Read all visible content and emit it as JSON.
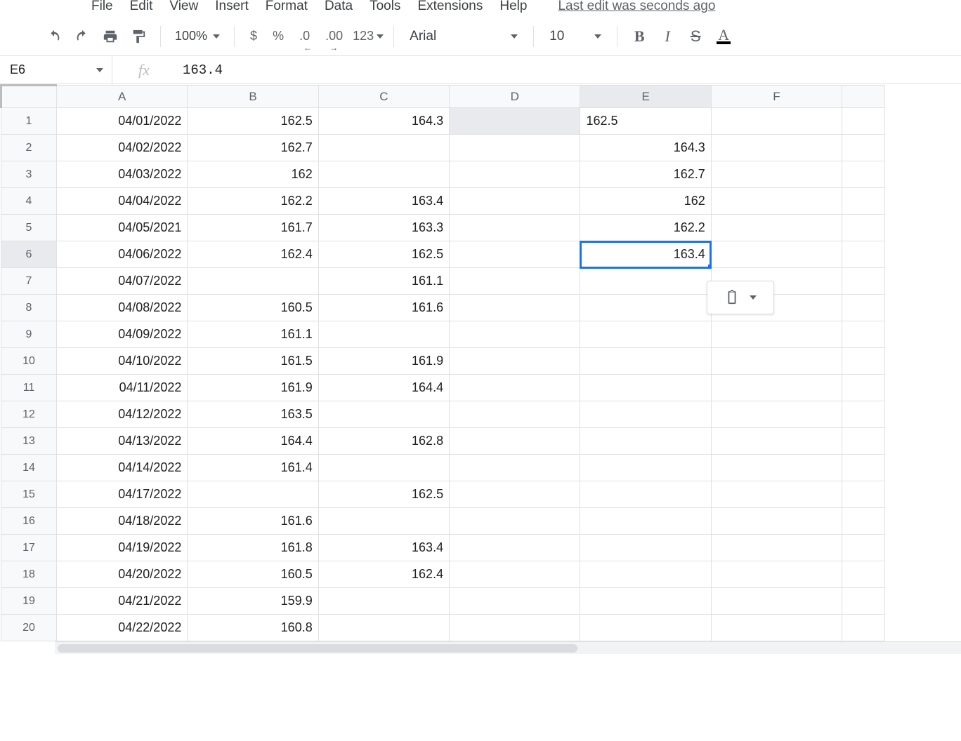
{
  "menus": [
    "File",
    "Edit",
    "View",
    "Insert",
    "Format",
    "Data",
    "Tools",
    "Extensions",
    "Help"
  ],
  "last_edit": "Last edit was seconds ago",
  "toolbar": {
    "zoom": "100%",
    "currency": "$",
    "percent": "%",
    "dec_dec": ".0",
    "inc_dec": ".00",
    "more_formats": "123",
    "font_family": "Arial",
    "font_size": "10",
    "bold": "B",
    "italic": "I",
    "strike": "S",
    "text_color": "A"
  },
  "name_box": "E6",
  "formula": "163.4",
  "columns": [
    "A",
    "B",
    "C",
    "D",
    "E",
    "F"
  ],
  "selected": {
    "col": "E",
    "row": 6
  },
  "rows": [
    {
      "n": 1,
      "A": "04/01/2022",
      "B": "162.5",
      "C": "164.3",
      "D": "",
      "E": "162.5",
      "E_align": "left",
      "F": ""
    },
    {
      "n": 2,
      "A": "04/02/2022",
      "B": "162.7",
      "C": "",
      "D": "",
      "E": "164.3",
      "F": ""
    },
    {
      "n": 3,
      "A": "04/03/2022",
      "B": "162",
      "C": "",
      "D": "",
      "E": "162.7",
      "F": ""
    },
    {
      "n": 4,
      "A": "04/04/2022",
      "B": "162.2",
      "C": "163.4",
      "D": "",
      "E": "162",
      "F": ""
    },
    {
      "n": 5,
      "A": "04/05/2021",
      "B": "161.7",
      "C": "163.3",
      "D": "",
      "E": "162.2",
      "F": ""
    },
    {
      "n": 6,
      "A": "04/06/2022",
      "B": "162.4",
      "C": "162.5",
      "D": "",
      "E": "163.4",
      "F": ""
    },
    {
      "n": 7,
      "A": "04/07/2022",
      "B": "",
      "C": "161.1",
      "D": "",
      "E": "",
      "F": ""
    },
    {
      "n": 8,
      "A": "04/08/2022",
      "B": "160.5",
      "C": "161.6",
      "D": "",
      "E": "",
      "F": ""
    },
    {
      "n": 9,
      "A": "04/09/2022",
      "B": "161.1",
      "C": "",
      "D": "",
      "E": "",
      "F": ""
    },
    {
      "n": 10,
      "A": "04/10/2022",
      "B": "161.5",
      "C": "161.9",
      "D": "",
      "E": "",
      "F": ""
    },
    {
      "n": 11,
      "A": "04/11/2022",
      "B": "161.9",
      "C": "164.4",
      "D": "",
      "E": "",
      "F": ""
    },
    {
      "n": 12,
      "A": "04/12/2022",
      "B": "163.5",
      "C": "",
      "D": "",
      "E": "",
      "F": ""
    },
    {
      "n": 13,
      "A": "04/13/2022",
      "B": "164.4",
      "C": "162.8",
      "D": "",
      "E": "",
      "F": ""
    },
    {
      "n": 14,
      "A": "04/14/2022",
      "B": "161.4",
      "C": "",
      "D": "",
      "E": "",
      "F": ""
    },
    {
      "n": 15,
      "A": "04/17/2022",
      "B": "",
      "C": "162.5",
      "D": "",
      "E": "",
      "F": ""
    },
    {
      "n": 16,
      "A": "04/18/2022",
      "B": "161.6",
      "C": "",
      "D": "",
      "E": "",
      "F": ""
    },
    {
      "n": 17,
      "A": "04/19/2022",
      "B": "161.8",
      "C": "163.4",
      "D": "",
      "E": "",
      "F": ""
    },
    {
      "n": 18,
      "A": "04/20/2022",
      "B": "160.5",
      "C": "162.4",
      "D": "",
      "E": "",
      "F": ""
    },
    {
      "n": 19,
      "A": "04/21/2022",
      "B": "159.9",
      "C": "",
      "D": "",
      "E": "",
      "F": ""
    },
    {
      "n": 20,
      "A": "04/22/2022",
      "B": "160.8",
      "C": "",
      "D": "",
      "E": "",
      "F": ""
    }
  ],
  "colors": {
    "selection": "#1a73e8",
    "grid_line": "#e1e1e1",
    "header_bg": "#f8f9fa",
    "header_text": "#5f6368"
  }
}
